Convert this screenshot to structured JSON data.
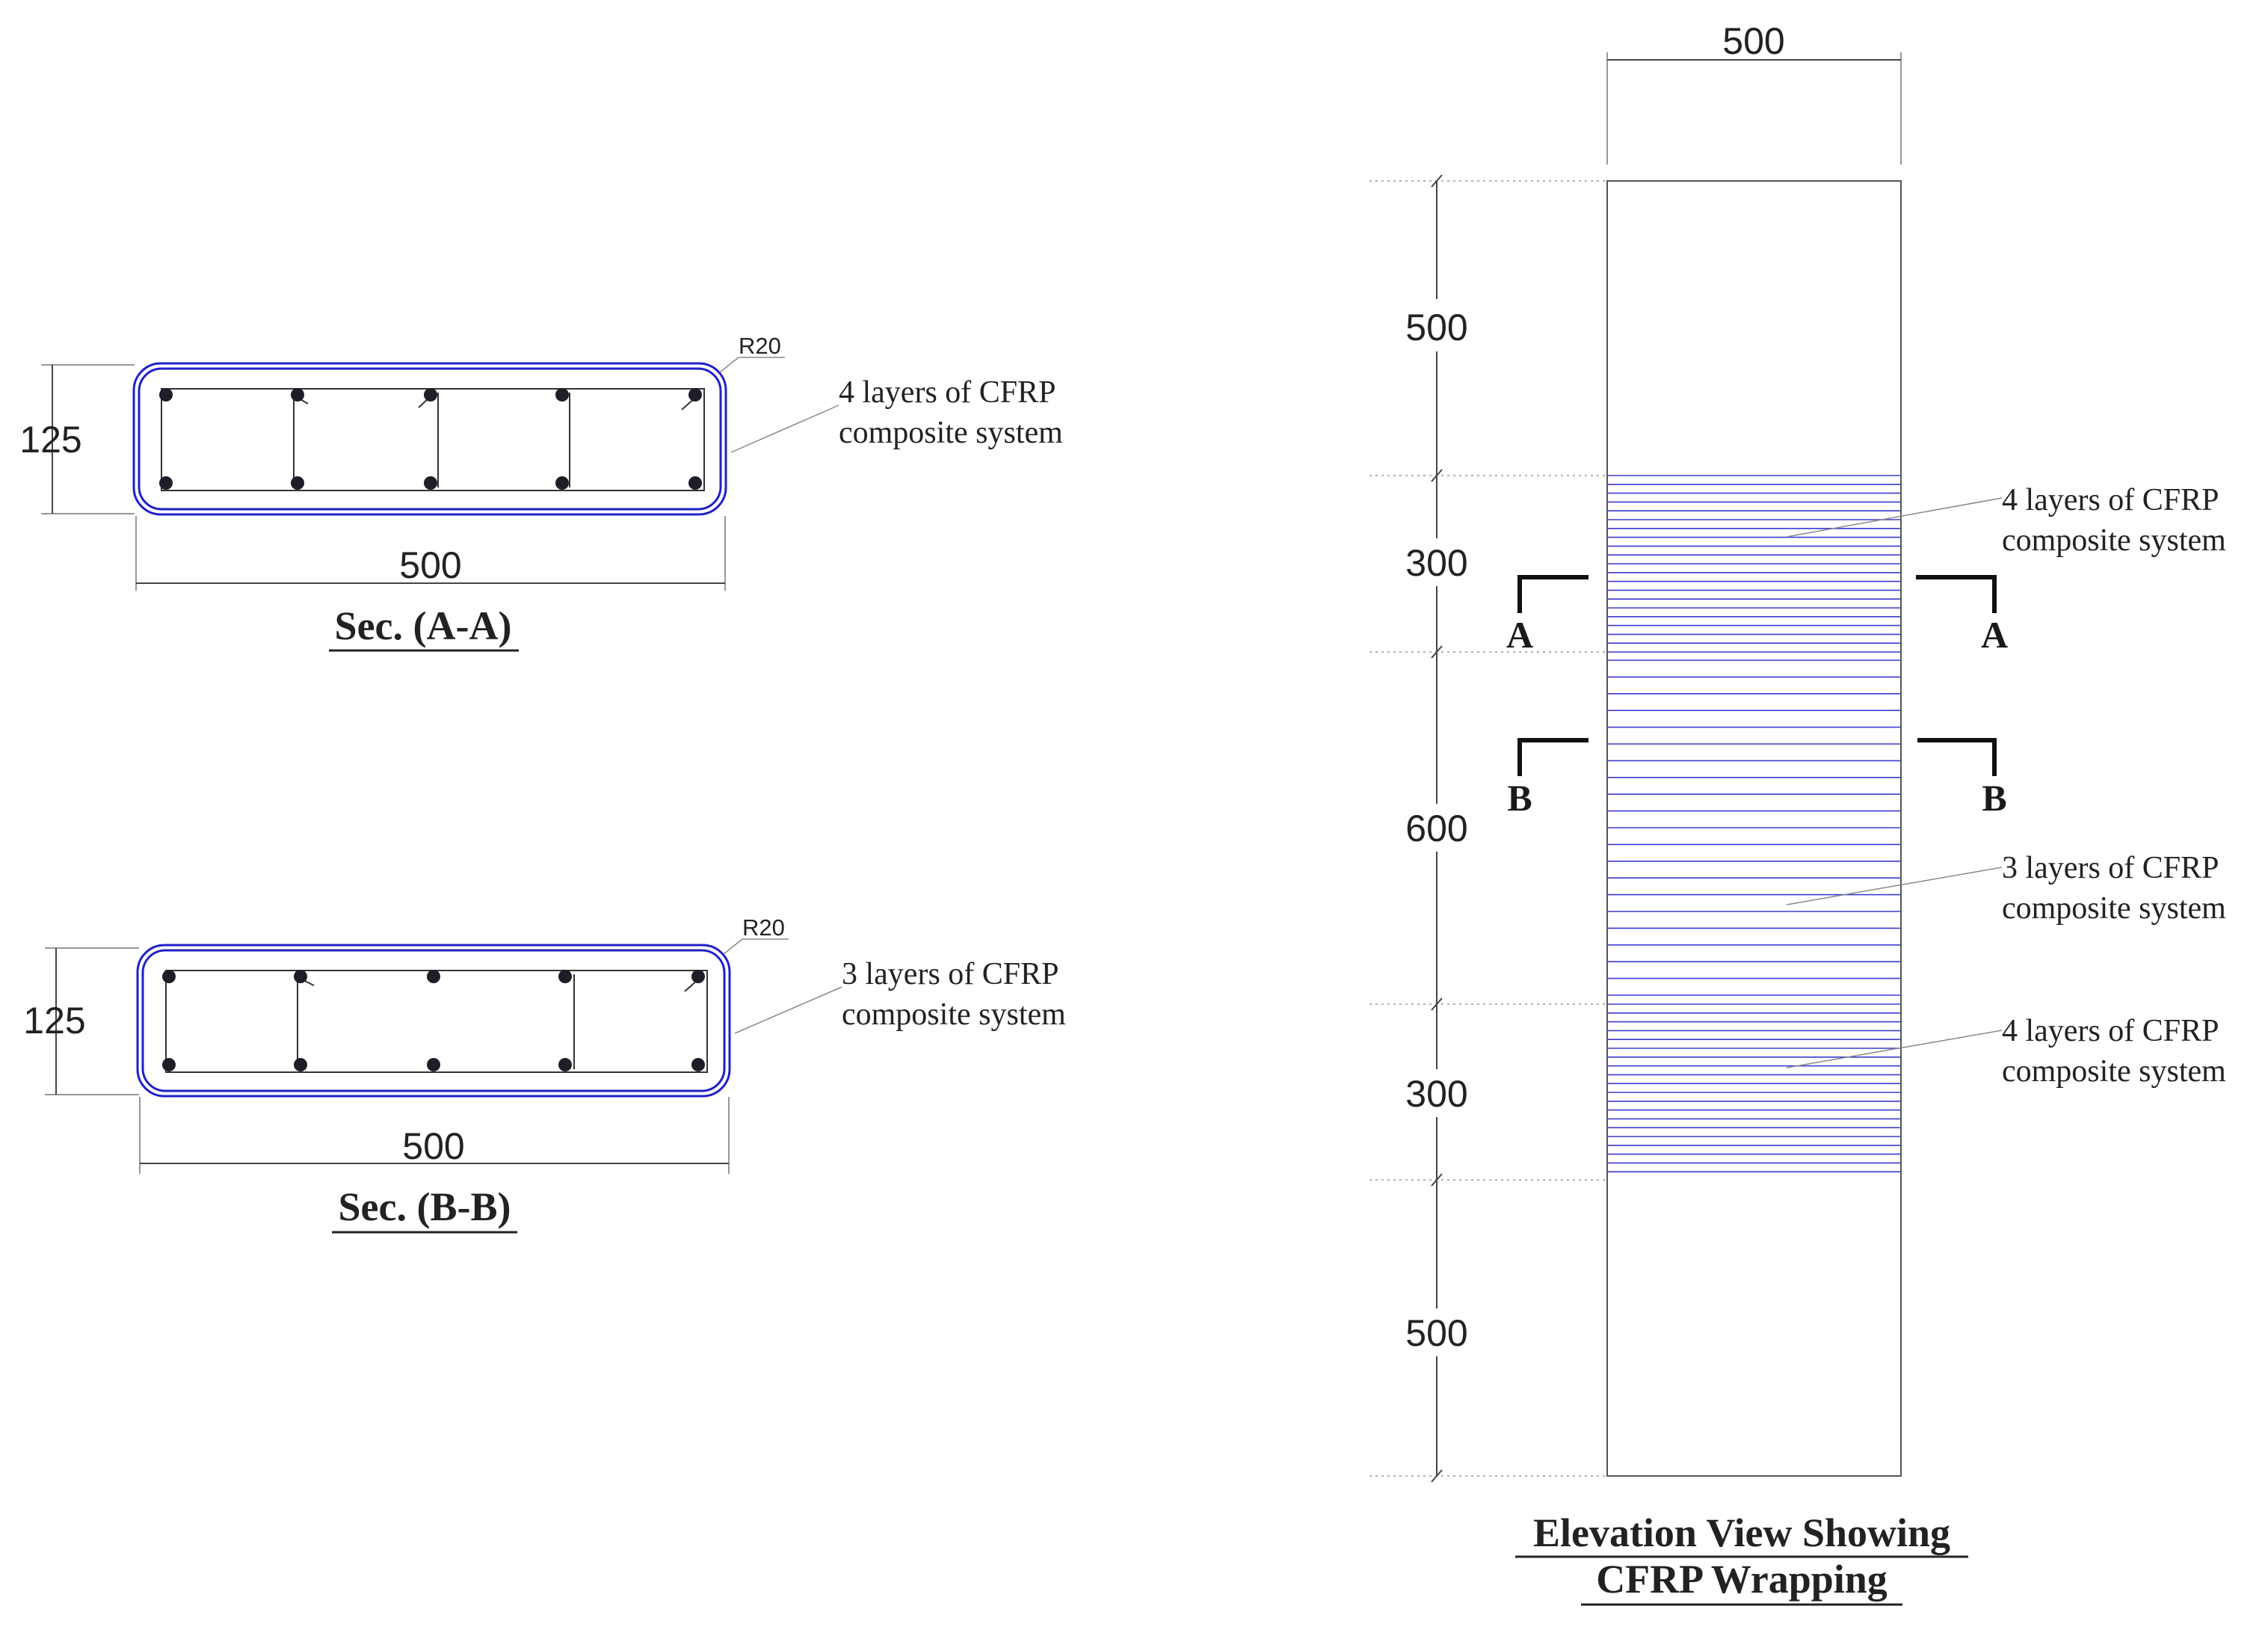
{
  "section_aa": {
    "title": "Sec. (A-A)",
    "width_label": "500",
    "height_label": "125",
    "radius_label": "R20",
    "note_line1": "4 layers of CFRP",
    "note_line2": "composite system"
  },
  "section_bb": {
    "title": "Sec. (B-B)",
    "width_label": "500",
    "height_label": "125",
    "radius_label": "R20",
    "note_line1": "3 layers of CFRP",
    "note_line2": "composite system"
  },
  "elevation": {
    "title_line1": "Elevation View Showing",
    "title_line2": "CFRP Wrapping",
    "width_label": "500",
    "segment_labels": [
      "500",
      "300",
      "600",
      "300",
      "500"
    ],
    "cut_a_left": "A",
    "cut_a_right": "A",
    "cut_b_left": "B",
    "cut_b_right": "B",
    "notes": [
      {
        "line1": "4 layers of CFRP",
        "line2": "composite system"
      },
      {
        "line1": "3 layers of CFRP",
        "line2": "composite system"
      },
      {
        "line1": "4 layers of CFRP",
        "line2": "composite system"
      }
    ]
  },
  "colors": {
    "cfrp": "#2020c8",
    "wrap_hatch": "#3b3bd4",
    "rebar": "#1e1e28"
  }
}
